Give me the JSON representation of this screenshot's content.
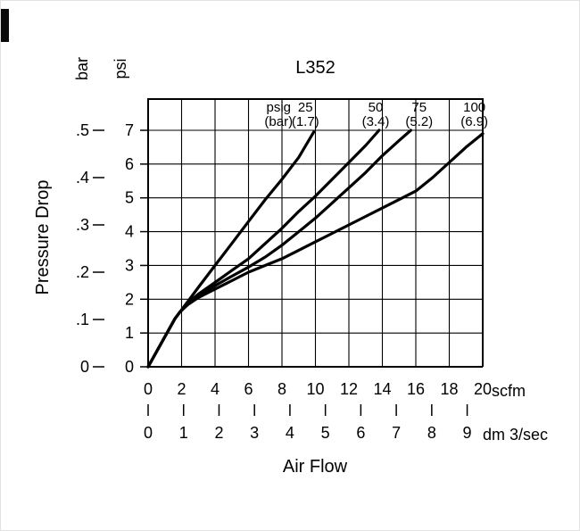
{
  "chart_data": {
    "type": "line",
    "title": "L352",
    "xlabel": "Air Flow",
    "ylabel": "Pressure Drop",
    "grid": true,
    "line_color": "#000000",
    "x_axis_primary": {
      "unit_label": "scfm",
      "min": 0,
      "max": 20,
      "ticks": [
        0,
        2,
        4,
        6,
        8,
        10,
        12,
        14,
        16,
        18,
        20
      ]
    },
    "x_axis_secondary": {
      "unit_label": "dm 3/sec",
      "ticks": [
        0,
        1,
        2,
        3,
        4,
        5,
        6,
        7,
        8,
        9
      ],
      "scfm_per_unit": 2.1189
    },
    "y_axis_primary": {
      "unit_label": "psi",
      "min": 0,
      "max": 7,
      "ticks": [
        0,
        1,
        2,
        3,
        4,
        5,
        6,
        7
      ]
    },
    "y_axis_secondary": {
      "unit_label": "bar",
      "ticks": [
        "0",
        ".1",
        ".2",
        ".3",
        ".4",
        ".5"
      ]
    },
    "series_header": {
      "line1": "psig",
      "line2": "(bar)",
      "label_x_scfm": 7.8
    },
    "series": [
      {
        "psig": "25",
        "bar": "(1.7)",
        "label_x_scfm": 9.4,
        "points": [
          [
            0,
            0
          ],
          [
            1.6,
            1.42
          ],
          [
            1.9,
            1.62
          ],
          [
            2.4,
            1.95
          ],
          [
            3,
            2.35
          ],
          [
            4,
            3.0
          ],
          [
            5,
            3.65
          ],
          [
            6,
            4.3
          ],
          [
            7,
            4.95
          ],
          [
            8,
            5.55
          ],
          [
            9,
            6.2
          ],
          [
            9.9,
            6.95
          ]
        ]
      },
      {
        "psig": "50",
        "bar": "(3.4)",
        "label_x_scfm": 13.6,
        "points": [
          [
            0,
            0
          ],
          [
            1.6,
            1.42
          ],
          [
            1.9,
            1.62
          ],
          [
            2.4,
            1.9
          ],
          [
            3,
            2.15
          ],
          [
            4,
            2.5
          ],
          [
            5,
            2.85
          ],
          [
            6,
            3.2
          ],
          [
            7,
            3.65
          ],
          [
            8,
            4.1
          ],
          [
            9,
            4.6
          ],
          [
            10,
            5.05
          ],
          [
            11,
            5.55
          ],
          [
            12,
            6.05
          ],
          [
            13,
            6.55
          ],
          [
            13.8,
            7.0
          ]
        ]
      },
      {
        "psig": "75",
        "bar": "(5.2)",
        "label_x_scfm": 16.2,
        "points": [
          [
            0,
            0
          ],
          [
            1.6,
            1.42
          ],
          [
            1.9,
            1.62
          ],
          [
            2.4,
            1.88
          ],
          [
            3,
            2.1
          ],
          [
            4,
            2.4
          ],
          [
            5,
            2.68
          ],
          [
            6,
            2.95
          ],
          [
            7,
            3.25
          ],
          [
            8,
            3.6
          ],
          [
            9,
            4.0
          ],
          [
            10,
            4.4
          ],
          [
            11,
            4.85
          ],
          [
            12,
            5.3
          ],
          [
            13,
            5.75
          ],
          [
            14,
            6.25
          ],
          [
            15,
            6.7
          ],
          [
            15.7,
            7.0
          ]
        ]
      },
      {
        "psig": "100",
        "bar": "(6.9)",
        "label_x_scfm": 19.5,
        "points": [
          [
            0,
            0
          ],
          [
            1.6,
            1.42
          ],
          [
            1.9,
            1.62
          ],
          [
            2.4,
            1.85
          ],
          [
            3,
            2.05
          ],
          [
            4,
            2.3
          ],
          [
            5,
            2.55
          ],
          [
            6,
            2.8
          ],
          [
            7,
            3.0
          ],
          [
            8,
            3.2
          ],
          [
            9,
            3.45
          ],
          [
            10,
            3.7
          ],
          [
            11,
            3.95
          ],
          [
            12,
            4.2
          ],
          [
            13,
            4.45
          ],
          [
            14,
            4.7
          ],
          [
            15,
            4.95
          ],
          [
            16,
            5.2
          ],
          [
            17,
            5.6
          ],
          [
            18,
            6.05
          ],
          [
            19,
            6.5
          ],
          [
            20,
            6.9
          ]
        ]
      }
    ]
  }
}
